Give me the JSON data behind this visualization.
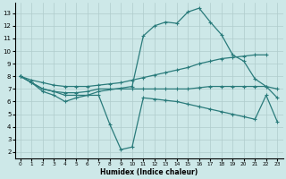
{
  "xlabel": "Humidex (Indice chaleur)",
  "bg_color": "#cde8e8",
  "grid_color": "#b0cccc",
  "line_color": "#2a7b7b",
  "xlim": [
    -0.5,
    23.5
  ],
  "ylim": [
    1.5,
    13.8
  ],
  "yticks": [
    2,
    3,
    4,
    5,
    6,
    7,
    8,
    9,
    10,
    11,
    12,
    13
  ],
  "xticks": [
    0,
    1,
    2,
    3,
    4,
    5,
    6,
    7,
    8,
    9,
    10,
    11,
    12,
    13,
    14,
    15,
    16,
    17,
    18,
    19,
    20,
    21,
    22,
    23
  ],
  "line_peak_x": [
    0,
    1,
    2,
    3,
    4,
    5,
    6,
    7,
    10,
    11,
    12,
    13,
    14,
    15,
    16,
    17,
    18,
    19,
    20,
    21,
    22,
    23
  ],
  "line_peak_y": [
    8.0,
    7.5,
    7.0,
    6.8,
    6.5,
    6.5,
    6.5,
    6.8,
    7.2,
    11.2,
    12.0,
    12.3,
    12.2,
    13.1,
    13.4,
    12.3,
    11.3,
    9.7,
    9.2,
    7.8,
    7.2,
    6.3
  ],
  "line_upper_x": [
    0,
    1,
    2,
    3,
    4,
    5,
    6,
    7,
    8,
    9,
    10,
    11,
    12,
    13,
    14,
    15,
    16,
    17,
    18,
    19,
    20,
    21,
    22
  ],
  "line_upper_y": [
    8.0,
    7.7,
    7.5,
    7.3,
    7.2,
    7.2,
    7.2,
    7.3,
    7.4,
    7.5,
    7.7,
    7.9,
    8.1,
    8.3,
    8.5,
    8.7,
    9.0,
    9.2,
    9.4,
    9.5,
    9.6,
    9.7,
    9.7
  ],
  "line_mid_x": [
    0,
    1,
    2,
    3,
    4,
    5,
    6,
    7,
    8,
    9,
    10,
    11,
    12,
    13,
    14,
    15,
    16,
    17,
    18,
    19,
    20,
    21,
    22,
    23
  ],
  "line_mid_y": [
    8.0,
    7.5,
    7.0,
    6.8,
    6.7,
    6.7,
    6.8,
    7.0,
    7.0,
    7.0,
    7.0,
    7.0,
    7.0,
    7.0,
    7.0,
    7.0,
    7.1,
    7.2,
    7.2,
    7.2,
    7.2,
    7.2,
    7.2,
    7.0
  ],
  "line_low_x": [
    0,
    1,
    2,
    3,
    4,
    5,
    6,
    7,
    8,
    9,
    10,
    11,
    12,
    13,
    14,
    15,
    16,
    17,
    18,
    19,
    20,
    21,
    22,
    23
  ],
  "line_low_y": [
    8.0,
    7.5,
    6.8,
    6.5,
    6.0,
    6.3,
    6.5,
    6.5,
    4.2,
    2.2,
    2.4,
    6.3,
    6.2,
    6.1,
    6.0,
    5.8,
    5.6,
    5.4,
    5.2,
    5.0,
    4.8,
    4.6,
    6.5,
    4.4
  ]
}
